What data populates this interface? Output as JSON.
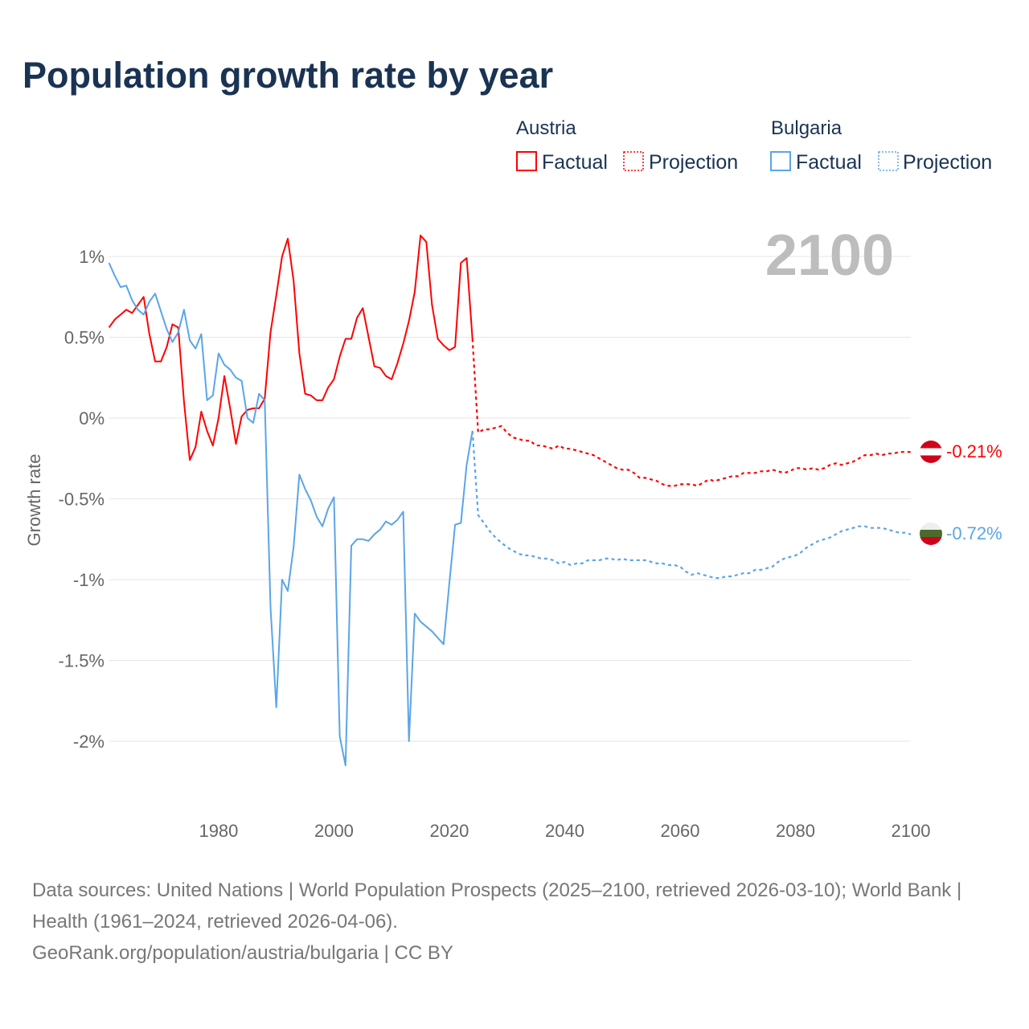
{
  "title": "Population growth rate by year",
  "legend": {
    "groups": [
      {
        "name": "Austria",
        "factual": "Factual",
        "projection": "Projection",
        "color": "#ff0000"
      },
      {
        "name": "Bulgaria",
        "factual": "Factual",
        "projection": "Projection",
        "color": "#5aa5e8"
      }
    ]
  },
  "year_display": "2100",
  "end_labels": {
    "austria": "-0.21%",
    "bulgaria": "-0.72%"
  },
  "footer": {
    "sources": "Data sources: United Nations | World Population Prospects (2025–2100, retrieved 2026-03-10); World Bank | Health (1961–2024, retrieved 2026-04-06).",
    "credit": "GeoRank.org/population/austria/bulgaria | CC BY"
  },
  "chart_data": {
    "type": "line",
    "title": "Population growth rate by year",
    "xlabel": "",
    "ylabel": "Growth rate",
    "xlim": [
      1961,
      2100
    ],
    "ylim": [
      -2.5,
      1.2
    ],
    "xticks": [
      "1980",
      "2000",
      "2020",
      "2040",
      "2060",
      "2080",
      "2100"
    ],
    "yticks": [
      {
        "v": 1,
        "label": "1%"
      },
      {
        "v": 0.5,
        "label": "0.5%"
      },
      {
        "v": 0,
        "label": "0%"
      },
      {
        "v": -0.5,
        "label": "-0.5%"
      },
      {
        "v": -1,
        "label": "-1%"
      },
      {
        "v": -1.5,
        "label": "-1.5%"
      },
      {
        "v": -2,
        "label": "-2%"
      }
    ],
    "grid": true,
    "legend_position": "top-right",
    "series": [
      {
        "name": "Austria Factual",
        "start_year": 1961,
        "color": "#ff0000",
        "dashed": false,
        "values": [
          0.56,
          0.61,
          0.64,
          0.67,
          0.65,
          0.7,
          0.75,
          0.52,
          0.35,
          0.35,
          0.44,
          0.58,
          0.56,
          0.1,
          -0.26,
          -0.18,
          0.04,
          -0.08,
          -0.17,
          0.0,
          0.26,
          0.06,
          -0.16,
          0.01,
          0.05,
          0.06,
          0.06,
          0.12,
          0.53,
          0.76,
          1.0,
          1.11,
          0.85,
          0.4,
          0.15,
          0.14,
          0.11,
          0.11,
          0.19,
          0.24,
          0.38,
          0.49,
          0.49,
          0.62,
          0.68,
          0.5,
          0.32,
          0.31,
          0.26,
          0.24,
          0.34,
          0.46,
          0.6,
          0.78,
          1.13,
          1.09,
          0.7,
          0.49,
          0.45,
          0.42,
          0.44,
          0.96,
          0.99,
          0.49
        ]
      },
      {
        "name": "Austria Projection",
        "start_year": 2025,
        "color": "#ff0000",
        "dashed": true,
        "values": [
          -0.09,
          -0.07,
          -0.07,
          -0.06,
          -0.05,
          -0.09,
          -0.12,
          -0.13,
          -0.14,
          -0.14,
          -0.17,
          -0.17,
          -0.18,
          -0.19,
          -0.17,
          -0.19,
          -0.19,
          -0.2,
          -0.21,
          -0.22,
          -0.23,
          -0.25,
          -0.27,
          -0.29,
          -0.31,
          -0.32,
          -0.32,
          -0.34,
          -0.37,
          -0.37,
          -0.38,
          -0.39,
          -0.41,
          -0.42,
          -0.42,
          -0.41,
          -0.41,
          -0.41,
          -0.42,
          -0.4,
          -0.38,
          -0.39,
          -0.38,
          -0.37,
          -0.36,
          -0.36,
          -0.34,
          -0.34,
          -0.34,
          -0.33,
          -0.33,
          -0.32,
          -0.33,
          -0.34,
          -0.33,
          -0.31,
          -0.31,
          -0.32,
          -0.31,
          -0.32,
          -0.31,
          -0.29,
          -0.28,
          -0.29,
          -0.28,
          -0.27,
          -0.25,
          -0.23,
          -0.23,
          -0.22,
          -0.23,
          -0.22,
          -0.22,
          -0.21,
          -0.21,
          -0.21
        ]
      },
      {
        "name": "Bulgaria Factual",
        "start_year": 1961,
        "color": "#5aa5e8",
        "dashed": false,
        "values": [
          0.96,
          0.88,
          0.81,
          0.82,
          0.73,
          0.67,
          0.64,
          0.72,
          0.77,
          0.66,
          0.55,
          0.47,
          0.53,
          0.67,
          0.48,
          0.43,
          0.52,
          0.11,
          0.14,
          0.4,
          0.33,
          0.3,
          0.25,
          0.23,
          0.0,
          -0.03,
          0.15,
          0.11,
          -1.17,
          -1.79,
          -1.0,
          -1.07,
          -0.8,
          -0.35,
          -0.44,
          -0.51,
          -0.61,
          -0.67,
          -0.56,
          -0.49,
          -1.97,
          -2.15,
          -0.79,
          -0.75,
          -0.75,
          -0.76,
          -0.72,
          -0.69,
          -0.64,
          -0.66,
          -0.63,
          -0.58,
          -2.0,
          -1.21,
          -1.26,
          -1.29,
          -1.32,
          -1.36,
          -1.4,
          -1.02,
          -0.66,
          -0.65,
          -0.29,
          -0.08
        ]
      },
      {
        "name": "Bulgaria Projection",
        "start_year": 2025,
        "color": "#5aa5e8",
        "dashed": true,
        "values": [
          -0.6,
          -0.65,
          -0.7,
          -0.74,
          -0.77,
          -0.8,
          -0.82,
          -0.84,
          -0.85,
          -0.85,
          -0.86,
          -0.87,
          -0.87,
          -0.88,
          -0.9,
          -0.89,
          -0.91,
          -0.9,
          -0.9,
          -0.88,
          -0.88,
          -0.88,
          -0.87,
          -0.87,
          -0.88,
          -0.87,
          -0.88,
          -0.88,
          -0.88,
          -0.88,
          -0.89,
          -0.9,
          -0.9,
          -0.91,
          -0.91,
          -0.92,
          -0.95,
          -0.97,
          -0.96,
          -0.97,
          -0.98,
          -0.99,
          -0.99,
          -0.98,
          -0.98,
          -0.97,
          -0.96,
          -0.96,
          -0.94,
          -0.94,
          -0.93,
          -0.92,
          -0.89,
          -0.87,
          -0.86,
          -0.85,
          -0.83,
          -0.8,
          -0.78,
          -0.76,
          -0.75,
          -0.74,
          -0.72,
          -0.7,
          -0.69,
          -0.68,
          -0.67,
          -0.67,
          -0.68,
          -0.68,
          -0.68,
          -0.69,
          -0.7,
          -0.71,
          -0.71,
          -0.72
        ]
      }
    ]
  }
}
